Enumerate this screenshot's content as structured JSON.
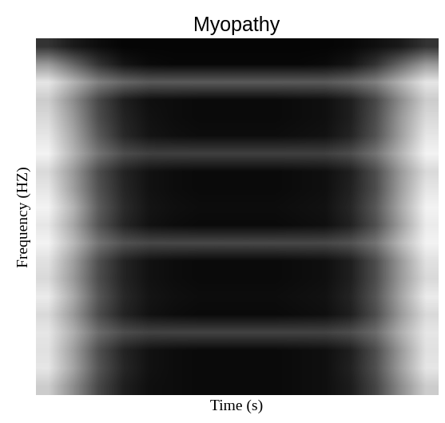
{
  "chart_data": {
    "type": "heatmap",
    "title": "Myopathy",
    "x_label": "Time (s)",
    "y_label": "Frequency (HZ)",
    "tick_labels": false,
    "color": "gray",
    "color_range": [
      0,
      1
    ],
    "cells": [
      [
        0.2,
        0.1,
        0.05,
        0.02,
        0.02,
        0.02,
        0.02,
        0.02,
        0.02,
        0.02,
        0.02,
        0.02,
        0.03,
        0.06,
        0.1,
        0.2
      ],
      [
        0.6,
        0.4,
        0.2,
        0.08,
        0.04,
        0.03,
        0.03,
        0.03,
        0.03,
        0.03,
        0.03,
        0.04,
        0.08,
        0.2,
        0.4,
        0.6
      ],
      [
        0.9,
        0.7,
        0.5,
        0.4,
        0.35,
        0.35,
        0.35,
        0.35,
        0.35,
        0.35,
        0.35,
        0.35,
        0.4,
        0.5,
        0.7,
        0.9
      ],
      [
        0.8,
        0.55,
        0.28,
        0.12,
        0.06,
        0.05,
        0.04,
        0.04,
        0.04,
        0.04,
        0.05,
        0.06,
        0.12,
        0.28,
        0.55,
        0.8
      ],
      [
        0.85,
        0.6,
        0.3,
        0.14,
        0.07,
        0.05,
        0.04,
        0.04,
        0.04,
        0.04,
        0.05,
        0.06,
        0.12,
        0.3,
        0.6,
        0.85
      ],
      [
        0.9,
        0.65,
        0.35,
        0.16,
        0.08,
        0.06,
        0.05,
        0.05,
        0.05,
        0.05,
        0.06,
        0.07,
        0.14,
        0.32,
        0.62,
        0.9
      ],
      [
        0.95,
        0.7,
        0.45,
        0.3,
        0.25,
        0.25,
        0.25,
        0.25,
        0.25,
        0.25,
        0.25,
        0.25,
        0.3,
        0.45,
        0.7,
        0.95
      ],
      [
        0.85,
        0.6,
        0.3,
        0.14,
        0.07,
        0.05,
        0.04,
        0.04,
        0.04,
        0.04,
        0.05,
        0.06,
        0.12,
        0.3,
        0.6,
        0.85
      ],
      [
        0.9,
        0.62,
        0.32,
        0.15,
        0.07,
        0.05,
        0.04,
        0.04,
        0.04,
        0.04,
        0.05,
        0.06,
        0.13,
        0.3,
        0.62,
        0.9
      ],
      [
        0.95,
        0.7,
        0.36,
        0.17,
        0.08,
        0.06,
        0.05,
        0.05,
        0.05,
        0.05,
        0.06,
        0.07,
        0.15,
        0.34,
        0.66,
        0.95
      ],
      [
        0.9,
        0.65,
        0.33,
        0.15,
        0.07,
        0.05,
        0.04,
        0.04,
        0.04,
        0.04,
        0.05,
        0.06,
        0.13,
        0.31,
        0.62,
        0.92
      ],
      [
        0.95,
        0.72,
        0.45,
        0.32,
        0.28,
        0.28,
        0.28,
        0.28,
        0.28,
        0.28,
        0.28,
        0.28,
        0.32,
        0.45,
        0.72,
        0.95
      ],
      [
        0.88,
        0.62,
        0.31,
        0.14,
        0.07,
        0.05,
        0.04,
        0.04,
        0.04,
        0.04,
        0.05,
        0.06,
        0.12,
        0.3,
        0.6,
        0.88
      ],
      [
        0.85,
        0.6,
        0.3,
        0.14,
        0.07,
        0.05,
        0.04,
        0.04,
        0.04,
        0.04,
        0.05,
        0.06,
        0.12,
        0.3,
        0.6,
        0.85
      ],
      [
        0.92,
        0.66,
        0.34,
        0.16,
        0.08,
        0.06,
        0.05,
        0.05,
        0.05,
        0.05,
        0.06,
        0.07,
        0.14,
        0.33,
        0.64,
        0.92
      ],
      [
        0.85,
        0.6,
        0.3,
        0.14,
        0.07,
        0.05,
        0.04,
        0.04,
        0.04,
        0.04,
        0.05,
        0.06,
        0.12,
        0.3,
        0.6,
        0.85
      ],
      [
        0.9,
        0.68,
        0.42,
        0.3,
        0.26,
        0.26,
        0.26,
        0.26,
        0.26,
        0.26,
        0.26,
        0.26,
        0.3,
        0.42,
        0.68,
        0.9
      ],
      [
        0.88,
        0.62,
        0.31,
        0.14,
        0.07,
        0.05,
        0.04,
        0.04,
        0.04,
        0.04,
        0.05,
        0.06,
        0.12,
        0.3,
        0.6,
        0.88
      ],
      [
        0.9,
        0.64,
        0.33,
        0.15,
        0.07,
        0.05,
        0.04,
        0.04,
        0.04,
        0.04,
        0.05,
        0.06,
        0.13,
        0.31,
        0.62,
        0.9
      ],
      [
        0.8,
        0.55,
        0.28,
        0.12,
        0.06,
        0.05,
        0.04,
        0.04,
        0.04,
        0.04,
        0.05,
        0.06,
        0.11,
        0.27,
        0.55,
        0.8
      ]
    ]
  }
}
